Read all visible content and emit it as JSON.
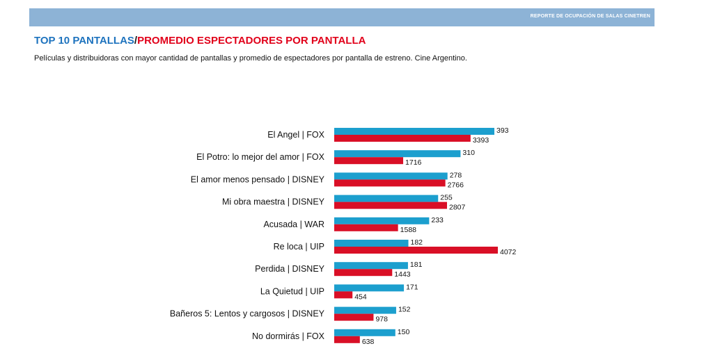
{
  "header": {
    "banner_text": "REPORTE DE OCUPACIÓN DE SALAS CINETREN",
    "title_part1": "TOP 10 PANTALLAS",
    "title_sep": "/",
    "title_part2": "PROMEDIO ESPECTADORES POR PANTALLA",
    "subtitle": "Películas y distribuidoras con mayor cantidad de pantallas y promedio de espectadores por pantalla de estreno. Cine Argentino."
  },
  "colors": {
    "screens": "#1c9fce",
    "avg": "#d90f26",
    "banner": "#8db3d6"
  },
  "chart_data": {
    "type": "bar",
    "orientation": "horizontal",
    "categories": [
      "El Angel | FOX",
      "El Potro: lo mejor del amor | FOX",
      "El amor menos pensado | DISNEY",
      "Mi obra maestra | DISNEY",
      "Acusada | WAR",
      "Re loca | UIP",
      "Perdida | DISNEY",
      "La Quietud | UIP",
      "Bañeros 5: Lentos y cargosos | DISNEY",
      "No dormirás | FOX"
    ],
    "series": [
      {
        "values": [
          393,
          310,
          278,
          255,
          233,
          182,
          181,
          171,
          152,
          150
        ]
      },
      {
        "values": [
          3393,
          1716,
          2766,
          2807,
          1588,
          4072,
          1443,
          454,
          978,
          638
        ]
      }
    ],
    "grid": false,
    "legend": "none"
  }
}
